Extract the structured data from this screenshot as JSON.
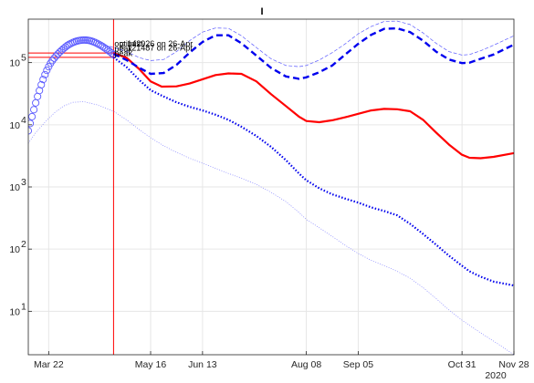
{
  "chart_data": {
    "type": "line",
    "title": "I",
    "y_scale": "log",
    "ylim": [
      2,
      500000
    ],
    "xlim": [
      "2020-03-11",
      "2020-11-28"
    ],
    "x_ticks": [
      {
        "date": "2020-03-22",
        "label": "Mar 22"
      },
      {
        "date": "2020-05-16",
        "label": "May 16"
      },
      {
        "date": "2020-06-13",
        "label": "Jun 13"
      },
      {
        "date": "2020-08-08",
        "label": "Aug 08"
      },
      {
        "date": "2020-09-05",
        "label": "Sep 05"
      },
      {
        "date": "2020-10-31",
        "label": "Oct 31"
      },
      {
        "date": "2020-11-28",
        "label": "Nov 28"
      }
    ],
    "x_year_label": "2020",
    "y_ticks": [
      {
        "value": 10,
        "base": "10",
        "exp": "1"
      },
      {
        "value": 100,
        "base": "10",
        "exp": "2"
      },
      {
        "value": 1000,
        "base": "10",
        "exp": "3"
      },
      {
        "value": 10000,
        "base": "10",
        "exp": "4"
      },
      {
        "value": 100000,
        "base": "10",
        "exp": "5"
      }
    ],
    "grid": true,
    "annotations": [
      {
        "text": "optimist",
        "date": "2020-04-26",
        "value": 180000
      },
      {
        "text": "= 142926 on 26-Apr",
        "date": "2020-04-29",
        "value": 183000
      },
      {
        "text": "peak",
        "date": "2020-04-26",
        "value": 150000
      },
      {
        "text": "= 121487 on 26-Apr",
        "date": "2020-04-29",
        "value": 155000
      },
      {
        "text": "peak",
        "date": "2020-04-26",
        "value": 128000
      }
    ],
    "reference_lines": [
      {
        "kind": "vertical",
        "date": "2020-04-26",
        "color": "#ff0000"
      },
      {
        "kind": "horizontal",
        "value": 142926,
        "color": "#ff0000"
      },
      {
        "kind": "horizontal",
        "value": 121487,
        "color": "#ff0000"
      }
    ],
    "series": [
      {
        "style": "markers",
        "color": "#5a5aff",
        "x": [
          "2020-03-11",
          "2020-03-12",
          "2020-03-13",
          "2020-03-14",
          "2020-03-15",
          "2020-03-16",
          "2020-03-17",
          "2020-03-18",
          "2020-03-19",
          "2020-03-20",
          "2020-03-21",
          "2020-03-22",
          "2020-03-23",
          "2020-03-24",
          "2020-03-25",
          "2020-03-26",
          "2020-03-27",
          "2020-03-28",
          "2020-03-29",
          "2020-03-30",
          "2020-03-31",
          "2020-04-01",
          "2020-04-02",
          "2020-04-03",
          "2020-04-04",
          "2020-04-05",
          "2020-04-06",
          "2020-04-07",
          "2020-04-08",
          "2020-04-09",
          "2020-04-10",
          "2020-04-11",
          "2020-04-12",
          "2020-04-13",
          "2020-04-14",
          "2020-04-15",
          "2020-04-16",
          "2020-04-17",
          "2020-04-18",
          "2020-04-19",
          "2020-04-20",
          "2020-04-21",
          "2020-04-22",
          "2020-04-23",
          "2020-04-24",
          "2020-04-25",
          "2020-04-26"
        ],
        "values": [
          8000,
          10500,
          13500,
          17500,
          22500,
          28500,
          35500,
          44000,
          53500,
          64000,
          75000,
          86000,
          97500,
          108000,
          118000,
          128000,
          138000,
          148000,
          158000,
          168000,
          178000,
          188000,
          196000,
          203000,
          210000,
          216000,
          221000,
          225000,
          228000,
          230000,
          231000,
          230500,
          229000,
          226000,
          222000,
          217000,
          211000,
          204000,
          197000,
          190000,
          182000,
          174000,
          166000,
          158000,
          150000,
          142000,
          134000
        ]
      },
      {
        "style": "solid",
        "color": "#ff0000",
        "x": [
          "2020-04-26",
          "2020-05-03",
          "2020-05-10",
          "2020-05-16",
          "2020-05-22",
          "2020-05-30",
          "2020-06-06",
          "2020-06-13",
          "2020-06-20",
          "2020-06-27",
          "2020-07-04",
          "2020-07-12",
          "2020-07-20",
          "2020-07-28",
          "2020-08-04",
          "2020-08-08",
          "2020-08-15",
          "2020-08-22",
          "2020-08-29",
          "2020-09-05",
          "2020-09-12",
          "2020-09-19",
          "2020-09-26",
          "2020-10-03",
          "2020-10-10",
          "2020-10-17",
          "2020-10-24",
          "2020-10-31",
          "2020-11-04",
          "2020-11-10",
          "2020-11-17",
          "2020-11-28"
        ],
        "values": [
          142926,
          120000,
          78000,
          50000,
          41000,
          41500,
          46000,
          54000,
          63000,
          67000,
          66000,
          50000,
          31000,
          20000,
          13500,
          11500,
          11000,
          11800,
          13200,
          15000,
          17000,
          18000,
          17800,
          16500,
          12000,
          7500,
          4800,
          3300,
          2950,
          2900,
          3050,
          3500
        ]
      },
      {
        "style": "dashed",
        "color": "#0000ee",
        "x": [
          "2020-04-26",
          "2020-05-03",
          "2020-05-10",
          "2020-05-16",
          "2020-05-23",
          "2020-05-30",
          "2020-06-06",
          "2020-06-13",
          "2020-06-20",
          "2020-06-27",
          "2020-07-04",
          "2020-07-12",
          "2020-07-20",
          "2020-07-28",
          "2020-08-04",
          "2020-08-08",
          "2020-08-15",
          "2020-08-22",
          "2020-08-29",
          "2020-09-05",
          "2020-09-12",
          "2020-09-19",
          "2020-09-26",
          "2020-10-03",
          "2020-10-10",
          "2020-10-17",
          "2020-10-24",
          "2020-10-31",
          "2020-11-04",
          "2020-11-10",
          "2020-11-17",
          "2020-11-28"
        ],
        "values": [
          138000,
          110000,
          82000,
          66000,
          68000,
          92000,
          145000,
          215000,
          275000,
          275000,
          205000,
          130000,
          82000,
          60000,
          55000,
          58000,
          70000,
          90000,
          135000,
          200000,
          280000,
          350000,
          355000,
          310000,
          225000,
          150000,
          112000,
          98000,
          100000,
          115000,
          135000,
          195000
        ]
      },
      {
        "style": "dotted",
        "color": "#0000ee",
        "x": [
          "2020-04-26",
          "2020-05-03",
          "2020-05-10",
          "2020-05-16",
          "2020-05-23",
          "2020-05-30",
          "2020-06-06",
          "2020-06-13",
          "2020-06-20",
          "2020-06-27",
          "2020-07-04",
          "2020-07-12",
          "2020-07-20",
          "2020-07-28",
          "2020-08-04",
          "2020-08-08",
          "2020-08-15",
          "2020-08-22",
          "2020-08-29",
          "2020-09-05",
          "2020-09-12",
          "2020-09-19",
          "2020-09-26",
          "2020-10-03",
          "2020-10-10",
          "2020-10-17",
          "2020-10-24",
          "2020-10-31",
          "2020-11-04",
          "2020-11-10",
          "2020-11-17",
          "2020-11-28"
        ],
        "values": [
          121487,
          85000,
          52000,
          36000,
          28500,
          23000,
          19500,
          17000,
          14500,
          12000,
          9300,
          6600,
          4400,
          2700,
          1650,
          1280,
          950,
          760,
          650,
          560,
          470,
          410,
          350,
          255,
          175,
          118,
          78,
          54,
          44,
          36,
          30,
          26
        ]
      },
      {
        "style": "thin-dashed",
        "color": "#5a5aff",
        "x": [
          "2020-04-18",
          "2020-04-26",
          "2020-05-03",
          "2020-05-10",
          "2020-05-16",
          "2020-05-23",
          "2020-05-30",
          "2020-06-06",
          "2020-06-13",
          "2020-06-20",
          "2020-06-27",
          "2020-07-04",
          "2020-07-12",
          "2020-07-20",
          "2020-07-28",
          "2020-08-04",
          "2020-08-08",
          "2020-08-15",
          "2020-08-22",
          "2020-08-29",
          "2020-09-05",
          "2020-09-12",
          "2020-09-19",
          "2020-09-26",
          "2020-10-03",
          "2020-10-10",
          "2020-10-17",
          "2020-10-24",
          "2020-10-31",
          "2020-11-04",
          "2020-11-10",
          "2020-11-17",
          "2020-11-28"
        ],
        "values": [
          205000,
          175000,
          150000,
          120000,
          108000,
          112000,
          150000,
          225000,
          310000,
          360000,
          355000,
          270000,
          175000,
          115000,
          90000,
          86000,
          90000,
          110000,
          145000,
          200000,
          290000,
          380000,
          460000,
          465000,
          410000,
          300000,
          205000,
          150000,
          132000,
          135000,
          155000,
          190000,
          270000
        ]
      },
      {
        "style": "thin-dotted",
        "color": "#8080ff",
        "x": [
          "2020-03-11",
          "2020-03-15",
          "2020-03-20",
          "2020-03-25",
          "2020-03-30",
          "2020-04-04",
          "2020-04-10",
          "2020-04-17",
          "2020-04-26",
          "2020-05-03",
          "2020-05-10",
          "2020-05-16",
          "2020-05-23",
          "2020-05-30",
          "2020-06-06",
          "2020-06-13",
          "2020-06-20",
          "2020-06-27",
          "2020-07-04",
          "2020-07-12",
          "2020-07-20",
          "2020-07-28",
          "2020-08-04",
          "2020-08-08",
          "2020-08-15",
          "2020-08-22",
          "2020-08-29",
          "2020-09-05",
          "2020-09-12",
          "2020-09-19",
          "2020-09-26",
          "2020-10-03",
          "2020-10-10",
          "2020-10-17",
          "2020-10-24",
          "2020-10-31",
          "2020-11-10",
          "2020-11-20",
          "2020-11-28"
        ],
        "values": [
          5000,
          7500,
          11000,
          15500,
          20000,
          23000,
          23500,
          21000,
          16500,
          12000,
          8300,
          6200,
          4600,
          3600,
          2900,
          2400,
          2000,
          1650,
          1380,
          1100,
          820,
          580,
          390,
          300,
          220,
          160,
          115,
          85,
          66,
          54,
          44,
          34,
          24,
          16,
          10.5,
          7.2,
          4.5,
          2.9,
          2
        ]
      }
    ]
  }
}
